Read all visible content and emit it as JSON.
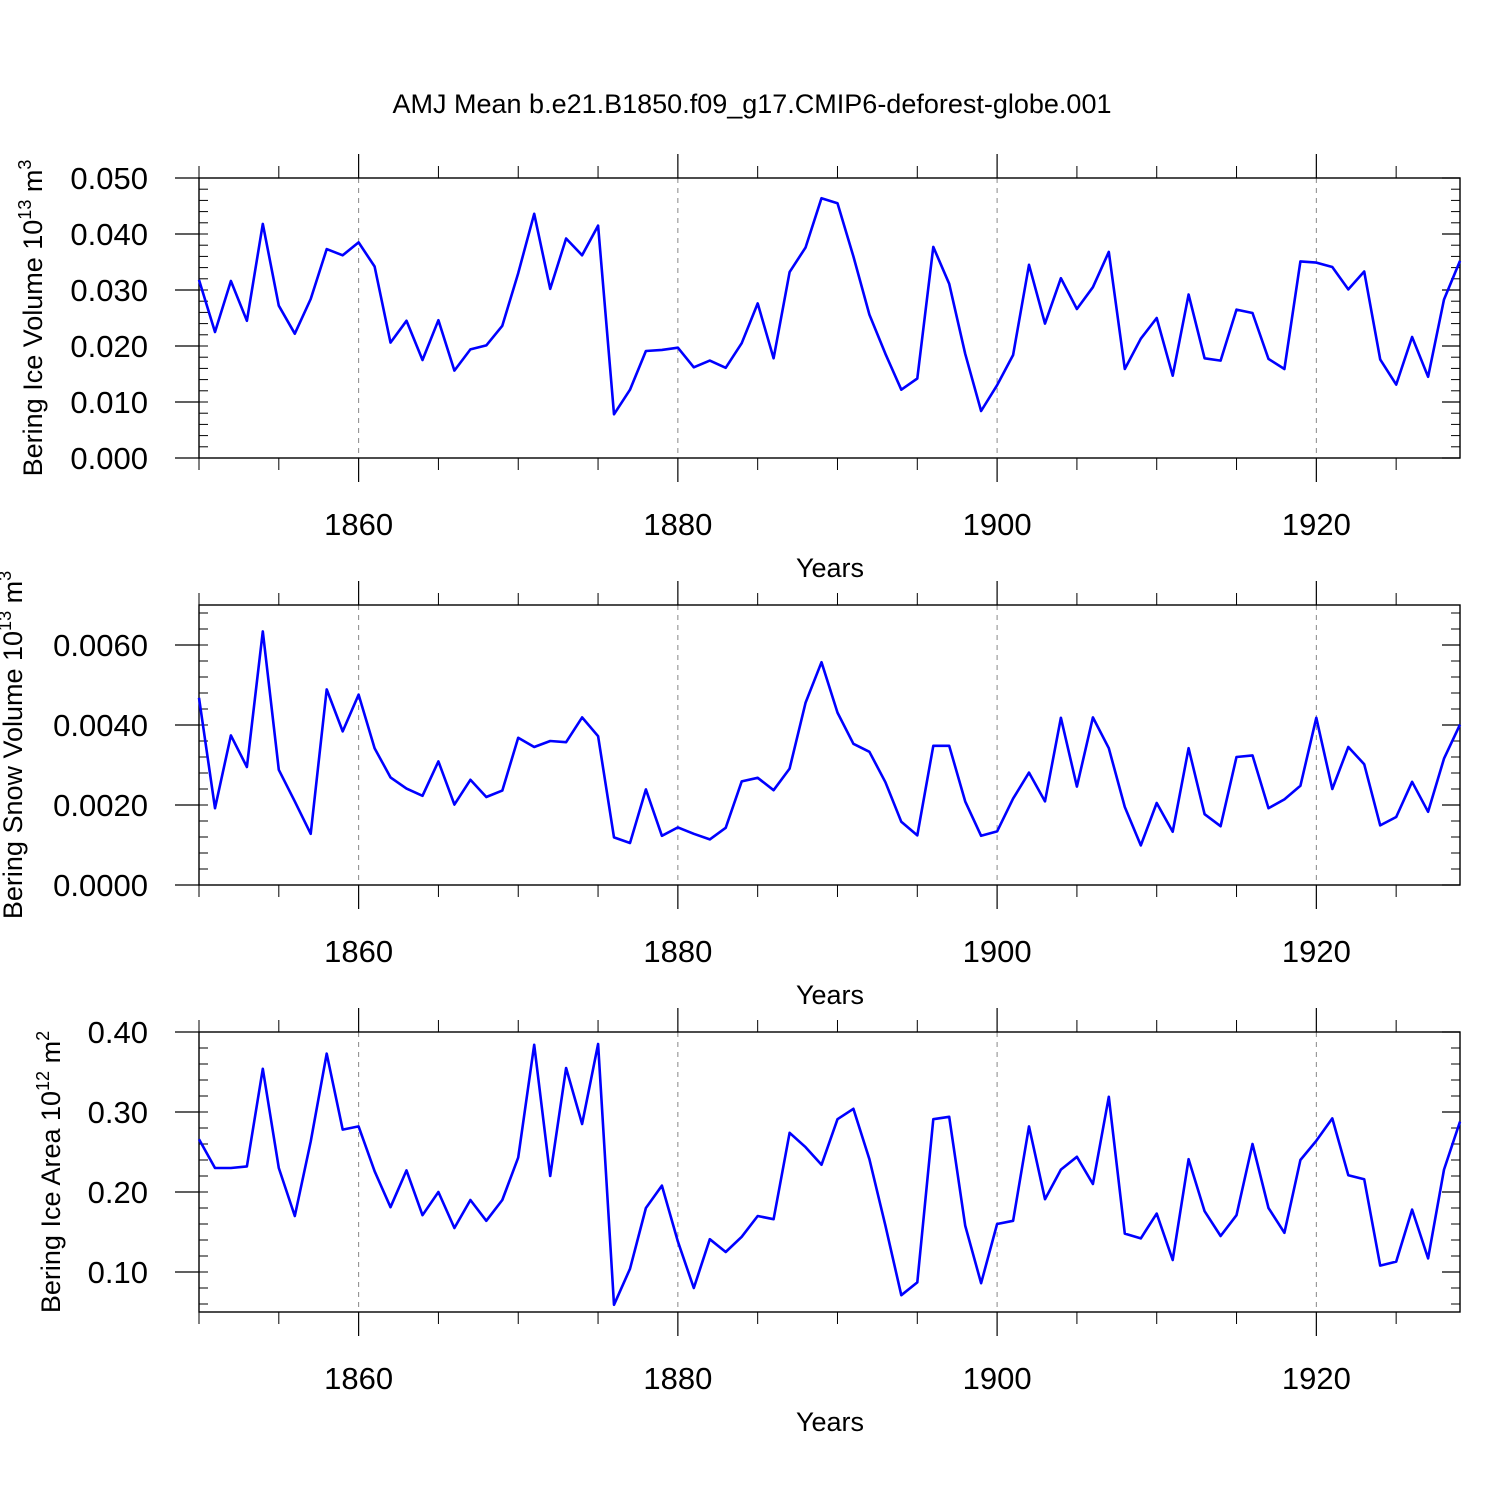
{
  "title": "AMJ Mean b.e21.B1850.f09_g17.CMIP6-deforest-globe.001",
  "line_color": "#0000ff",
  "chart_data": [
    {
      "type": "line",
      "ylabel_main": "Bering Ice Volume 10",
      "ylabel_exp": "13",
      "ylabel_unit": " m",
      "ylabel_unit_exp": "3",
      "xlabel": "Years",
      "xlim": [
        1850,
        1929
      ],
      "ylim": [
        0.0,
        0.05
      ],
      "x_ticks": [
        1860,
        1880,
        1900,
        1920
      ],
      "x_tick_labels": [
        "1860",
        "1880",
        "1900",
        "1920"
      ],
      "y_ticks": [
        0.0,
        0.01,
        0.02,
        0.03,
        0.04,
        0.05
      ],
      "y_tick_labels": [
        "0.000",
        "0.010",
        "0.020",
        "0.030",
        "0.040",
        "0.050"
      ],
      "y_minor_step": 0.002,
      "x_start": 1850,
      "values": [
        0.0318,
        0.0225,
        0.0316,
        0.0245,
        0.0418,
        0.0272,
        0.0222,
        0.0284,
        0.0373,
        0.0362,
        0.0385,
        0.0342,
        0.0206,
        0.0245,
        0.0175,
        0.0246,
        0.0156,
        0.0194,
        0.0201,
        0.0236,
        0.033,
        0.0436,
        0.0302,
        0.0392,
        0.0362,
        0.0415,
        0.0078,
        0.0122,
        0.0191,
        0.0193,
        0.0197,
        0.0162,
        0.0174,
        0.0161,
        0.0205,
        0.0276,
        0.0178,
        0.0332,
        0.0376,
        0.0464,
        0.0455,
        0.036,
        0.0256,
        0.0186,
        0.0122,
        0.0142,
        0.0377,
        0.0311,
        0.0186,
        0.0084,
        0.013,
        0.0184,
        0.0345,
        0.024,
        0.0321,
        0.0266,
        0.0305,
        0.0368,
        0.0159,
        0.0213,
        0.025,
        0.0147,
        0.0292,
        0.0178,
        0.0174,
        0.0265,
        0.0259,
        0.0177,
        0.0159,
        0.0351,
        0.0349,
        0.0341,
        0.0301,
        0.0333,
        0.0176,
        0.0131,
        0.0216,
        0.0145,
        0.0283,
        0.0352
      ]
    },
    {
      "type": "line",
      "ylabel_main": "Bering Snow Volume 10",
      "ylabel_exp": "13",
      "ylabel_unit": " m",
      "ylabel_unit_exp": "3",
      "xlabel": "Years",
      "xlim": [
        1850,
        1929
      ],
      "ylim": [
        0.0,
        0.007
      ],
      "x_ticks": [
        1860,
        1880,
        1900,
        1920
      ],
      "x_tick_labels": [
        "1860",
        "1880",
        "1900",
        "1920"
      ],
      "y_ticks": [
        0.0,
        0.002,
        0.004,
        0.006
      ],
      "y_tick_labels": [
        "0.0000",
        "0.0020",
        "0.0040",
        "0.0060"
      ],
      "y_minor_step": 0.0004,
      "x_start": 1850,
      "values": [
        0.00468,
        0.00192,
        0.00374,
        0.00295,
        0.00634,
        0.00288,
        0.00209,
        0.00128,
        0.00489,
        0.00384,
        0.00476,
        0.00342,
        0.00269,
        0.00241,
        0.00223,
        0.00309,
        0.00201,
        0.00263,
        0.0022,
        0.00236,
        0.00368,
        0.00345,
        0.0036,
        0.00357,
        0.00419,
        0.00372,
        0.00119,
        0.00105,
        0.00239,
        0.00123,
        0.00144,
        0.00128,
        0.00114,
        0.00143,
        0.00259,
        0.00268,
        0.00237,
        0.00291,
        0.00456,
        0.00557,
        0.00431,
        0.00353,
        0.00333,
        0.00257,
        0.00158,
        0.00124,
        0.00348,
        0.00348,
        0.00209,
        0.00123,
        0.00134,
        0.00216,
        0.00281,
        0.00209,
        0.00418,
        0.00246,
        0.00419,
        0.00342,
        0.00195,
        0.00099,
        0.00205,
        0.00133,
        0.00342,
        0.00177,
        0.00147,
        0.0032,
        0.00324,
        0.00192,
        0.00214,
        0.00248,
        0.00418,
        0.0024,
        0.00345,
        0.00302,
        0.00149,
        0.0017,
        0.00258,
        0.00183,
        0.00316,
        0.00401
      ]
    },
    {
      "type": "line",
      "ylabel_main": "Bering Ice Area 10",
      "ylabel_exp": "12",
      "ylabel_unit": " m",
      "ylabel_unit_exp": "2",
      "xlabel": "Years",
      "xlim": [
        1850,
        1929
      ],
      "ylim": [
        0.05,
        0.4
      ],
      "x_ticks": [
        1860,
        1880,
        1900,
        1920
      ],
      "x_tick_labels": [
        "1860",
        "1880",
        "1900",
        "1920"
      ],
      "y_ticks": [
        0.1,
        0.2,
        0.3,
        0.4
      ],
      "y_tick_labels": [
        "0.10",
        "0.20",
        "0.30",
        "0.40"
      ],
      "y_minor_step": 0.02,
      "x_start": 1850,
      "values": [
        0.266,
        0.23,
        0.23,
        0.232,
        0.354,
        0.23,
        0.17,
        0.263,
        0.373,
        0.278,
        0.282,
        0.226,
        0.181,
        0.227,
        0.171,
        0.2,
        0.155,
        0.19,
        0.164,
        0.19,
        0.243,
        0.384,
        0.22,
        0.355,
        0.285,
        0.385,
        0.059,
        0.104,
        0.18,
        0.208,
        0.138,
        0.08,
        0.141,
        0.125,
        0.144,
        0.17,
        0.166,
        0.274,
        0.256,
        0.234,
        0.291,
        0.304,
        0.241,
        0.158,
        0.071,
        0.087,
        0.291,
        0.294,
        0.158,
        0.086,
        0.16,
        0.164,
        0.282,
        0.191,
        0.228,
        0.244,
        0.21,
        0.319,
        0.148,
        0.142,
        0.173,
        0.115,
        0.241,
        0.176,
        0.145,
        0.171,
        0.26,
        0.18,
        0.149,
        0.24,
        0.264,
        0.292,
        0.221,
        0.216,
        0.108,
        0.113,
        0.178,
        0.117,
        0.228,
        0.288
      ]
    }
  ]
}
